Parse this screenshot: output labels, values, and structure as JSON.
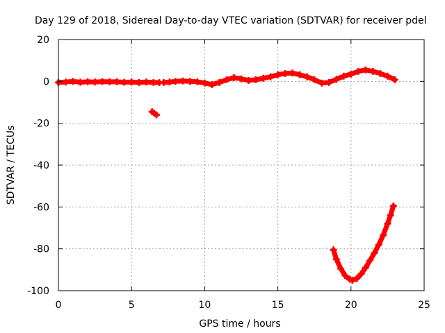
{
  "chart_data": {
    "type": "scatter",
    "title": "Day 129 of 2018, Sidereal Day-to-day VTEC variation (SDTVAR) for receiver pdel",
    "xlabel": "GPS time / hours",
    "ylabel": "SDTVAR / TECUs",
    "xlim": [
      0,
      25
    ],
    "ylim": [
      -100,
      20
    ],
    "xticks": [
      0,
      5,
      10,
      15,
      20,
      25
    ],
    "yticks": [
      -100,
      -80,
      -60,
      -40,
      -20,
      0,
      20
    ],
    "grid": true,
    "marker": "plus",
    "color": "#ff0000",
    "series": [
      {
        "x": [
          0.0,
          0.5,
          1.0,
          1.5,
          2.0,
          2.5,
          3.0,
          3.5,
          4.0,
          4.5,
          5.0,
          5.5,
          6.0,
          6.5,
          6.9
        ],
        "y": [
          -0.5,
          -0.3,
          0.0,
          -0.4,
          -0.2,
          -0.3,
          -0.1,
          -0.2,
          -0.2,
          -0.4,
          -0.3,
          -0.5,
          -0.3,
          -0.5,
          -0.6
        ]
      },
      {
        "x": [
          6.4,
          6.55,
          6.7
        ],
        "y": [
          -14.5,
          -15.2,
          -16.0
        ]
      },
      {
        "x": [
          7.2,
          7.6,
          8.0,
          8.5,
          9.0,
          9.5,
          10.0,
          10.5,
          11.0,
          11.5,
          12.0,
          12.5,
          13.0,
          13.5,
          14.0,
          14.5,
          15.0,
          15.5,
          16.0,
          16.5,
          17.0,
          17.5,
          18.0,
          18.5,
          19.0,
          19.5,
          20.0,
          20.5,
          21.0,
          21.5,
          22.0,
          22.5,
          23.0
        ],
        "y": [
          -0.5,
          -0.3,
          0.0,
          0.2,
          0.0,
          -0.2,
          -0.8,
          -1.5,
          -0.5,
          0.8,
          1.8,
          1.2,
          0.5,
          0.8,
          1.5,
          2.2,
          3.2,
          3.8,
          4.0,
          3.2,
          2.2,
          0.8,
          -0.8,
          -0.5,
          1.0,
          2.5,
          3.5,
          4.8,
          5.5,
          4.8,
          3.8,
          2.5,
          0.8
        ]
      },
      {
        "x": [
          18.8,
          19.0,
          19.3,
          19.6,
          19.9,
          20.1,
          20.4,
          20.7,
          21.0,
          21.3,
          21.6,
          21.9,
          22.2,
          22.5,
          22.7,
          22.9
        ],
        "y": [
          -80.5,
          -85.0,
          -89.5,
          -92.8,
          -94.5,
          -95.0,
          -94.2,
          -92.0,
          -89.0,
          -85.5,
          -82.0,
          -78.0,
          -73.5,
          -68.0,
          -64.0,
          -59.5
        ]
      }
    ]
  }
}
